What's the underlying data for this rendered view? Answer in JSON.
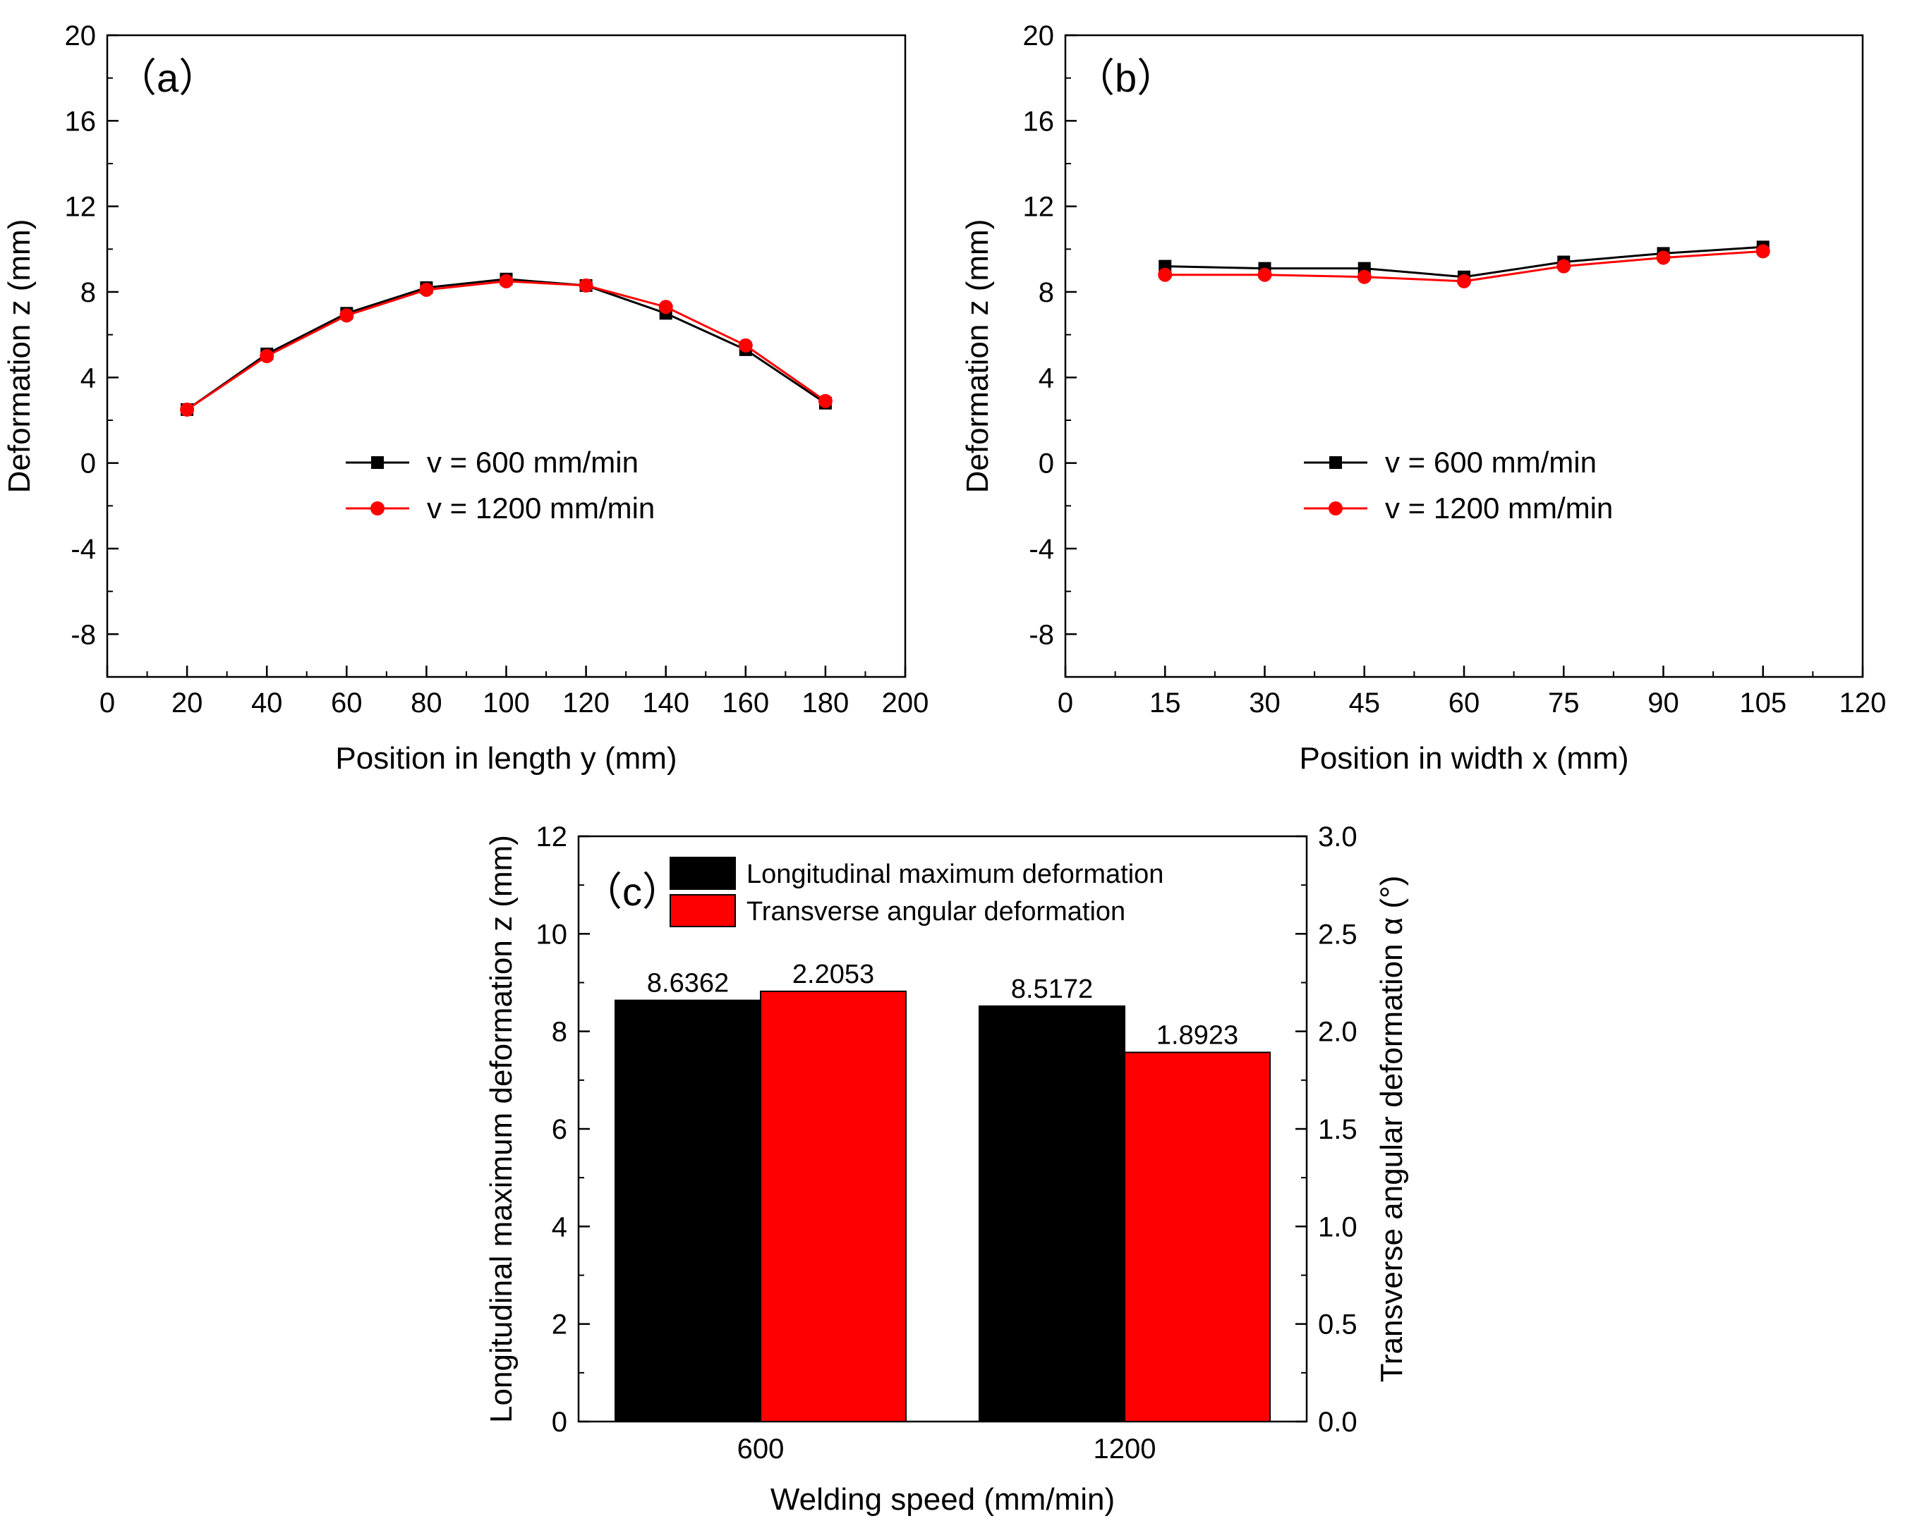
{
  "colors": {
    "series_600": "#000000",
    "series_1200": "#ff0000",
    "axis": "#000000"
  },
  "chart_data": [
    {
      "type": "line",
      "panel_label": "（a）",
      "xlabel": "Position in length y (mm)",
      "ylabel": "Deformation z (mm)",
      "xlim": [
        0,
        200
      ],
      "ylim": [
        -10,
        20
      ],
      "xticks": [
        "0",
        "20",
        "40",
        "60",
        "80",
        "100",
        "120",
        "140",
        "160",
        "180",
        "200"
      ],
      "yticks": [
        "-8",
        "-4",
        "0",
        "4",
        "8",
        "12",
        "16",
        "20"
      ],
      "x": [
        20,
        40,
        60,
        80,
        100,
        120,
        140,
        160,
        180
      ],
      "legend": "center",
      "series": [
        {
          "name": "v = 600 mm/min",
          "marker": "square",
          "color": "#000000",
          "values": [
            2.5,
            5.1,
            7.0,
            8.2,
            8.6,
            8.3,
            7.0,
            5.3,
            2.8
          ]
        },
        {
          "name": "v = 1200 mm/min",
          "marker": "circle",
          "color": "#ff0000",
          "values": [
            2.5,
            5.0,
            6.9,
            8.1,
            8.5,
            8.3,
            7.3,
            5.5,
            2.9
          ]
        }
      ]
    },
    {
      "type": "line",
      "panel_label": "（b）",
      "xlabel": "Position in width x (mm)",
      "ylabel": "Deformation z (mm)",
      "xlim": [
        0,
        120
      ],
      "ylim": [
        -10,
        20
      ],
      "xticks": [
        "0",
        "15",
        "30",
        "45",
        "60",
        "75",
        "90",
        "105",
        "120"
      ],
      "yticks": [
        "-8",
        "-4",
        "0",
        "4",
        "8",
        "12",
        "16",
        "20"
      ],
      "x": [
        15,
        30,
        45,
        60,
        75,
        90,
        105
      ],
      "legend": "center",
      "series": [
        {
          "name": "v = 600 mm/min",
          "marker": "square",
          "color": "#000000",
          "values": [
            9.2,
            9.1,
            9.1,
            8.7,
            9.4,
            9.8,
            10.1
          ]
        },
        {
          "name": "v = 1200 mm/min",
          "marker": "circle",
          "color": "#ff0000",
          "values": [
            8.8,
            8.8,
            8.7,
            8.5,
            9.2,
            9.6,
            9.9
          ]
        }
      ]
    },
    {
      "type": "bar",
      "panel_label": "（c）",
      "xlabel": "Welding speed (mm/min)",
      "ylabel": "Longitudinal maximum deformation z (mm)",
      "y2label": "Transverse angular deformation α (°)",
      "categories": [
        "600",
        "1200"
      ],
      "ylim": [
        0,
        12
      ],
      "y2lim": [
        0,
        3.0
      ],
      "yticks": [
        "0",
        "2",
        "4",
        "6",
        "8",
        "10",
        "12"
      ],
      "y2ticks": [
        "0.0",
        "0.5",
        "1.0",
        "1.5",
        "2.0",
        "2.5",
        "3.0"
      ],
      "legend": "top-left",
      "series": [
        {
          "name": "Longitudinal maximum deformation",
          "axis": "left",
          "color": "#000000",
          "values": [
            8.6362,
            8.5172
          ],
          "labels": [
            "8.6362",
            "8.5172"
          ]
        },
        {
          "name": "Transverse angular deformation",
          "axis": "right",
          "color": "#ff0000",
          "values": [
            2.2053,
            1.8923
          ],
          "labels": [
            "2.2053",
            "1.8923"
          ]
        }
      ]
    }
  ]
}
